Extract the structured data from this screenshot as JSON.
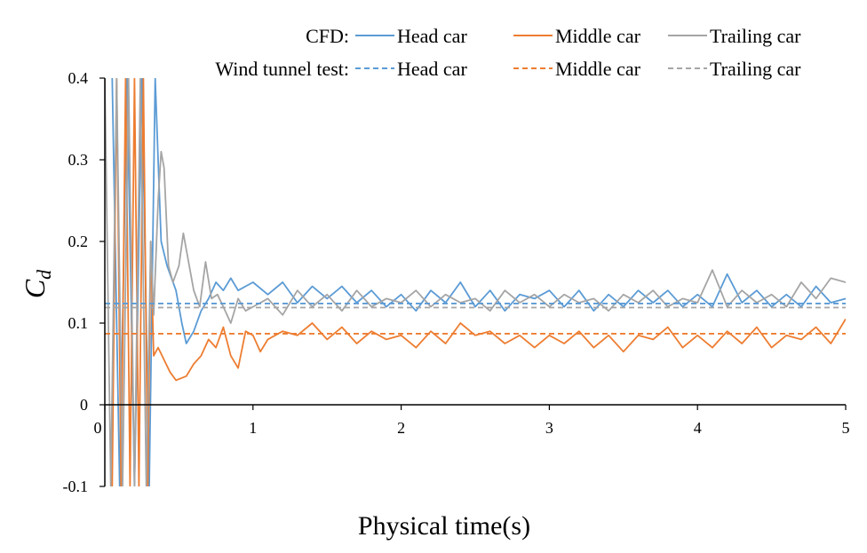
{
  "chart_data": {
    "type": "line",
    "xlabel": "Physical time(s)",
    "ylabel_main": "C",
    "ylabel_sub": "d",
    "xlim": [
      0,
      5
    ],
    "ylim": [
      -0.1,
      0.4
    ],
    "x_ticks": [
      0,
      1,
      2,
      3,
      4,
      5
    ],
    "y_ticks": [
      -0.1,
      0,
      0.1,
      0.2,
      0.3,
      0.4
    ],
    "y_tick_labels": [
      "-0.1",
      "0",
      "0.1",
      "0.2",
      "0.3",
      "0.4"
    ],
    "x_tick_labels": [
      "0",
      "1",
      "2",
      "3",
      "4",
      "5"
    ],
    "grid": false,
    "legend_position": "top-right",
    "legend": {
      "row_labels": [
        "CFD:",
        "Wind tunnel test:"
      ]
    },
    "colors": {
      "head": "#5B9BD5",
      "middle": "#ED7D31",
      "trailing": "#A5A5A5"
    },
    "series": [
      {
        "name": "Head car",
        "group": "CFD",
        "style": "solid",
        "color_key": "head",
        "points": [
          [
            0.05,
            0.4
          ],
          [
            0.1,
            -0.1
          ],
          [
            0.15,
            0.4
          ],
          [
            0.2,
            -0.1
          ],
          [
            0.25,
            0.4
          ],
          [
            0.3,
            -0.1
          ],
          [
            0.34,
            0.4
          ],
          [
            0.36,
            0.3
          ],
          [
            0.38,
            0.2
          ],
          [
            0.42,
            0.17
          ],
          [
            0.48,
            0.14
          ],
          [
            0.52,
            0.1
          ],
          [
            0.55,
            0.075
          ],
          [
            0.6,
            0.09
          ],
          [
            0.65,
            0.115
          ],
          [
            0.7,
            0.13
          ],
          [
            0.75,
            0.15
          ],
          [
            0.8,
            0.14
          ],
          [
            0.85,
            0.155
          ],
          [
            0.9,
            0.14
          ],
          [
            1.0,
            0.15
          ],
          [
            1.1,
            0.135
          ],
          [
            1.2,
            0.15
          ],
          [
            1.3,
            0.125
          ],
          [
            1.4,
            0.145
          ],
          [
            1.5,
            0.13
          ],
          [
            1.6,
            0.145
          ],
          [
            1.7,
            0.125
          ],
          [
            1.8,
            0.14
          ],
          [
            1.9,
            0.12
          ],
          [
            2.0,
            0.135
          ],
          [
            2.1,
            0.115
          ],
          [
            2.2,
            0.14
          ],
          [
            2.3,
            0.125
          ],
          [
            2.4,
            0.15
          ],
          [
            2.5,
            0.12
          ],
          [
            2.6,
            0.14
          ],
          [
            2.7,
            0.115
          ],
          [
            2.8,
            0.135
          ],
          [
            2.9,
            0.13
          ],
          [
            3.0,
            0.14
          ],
          [
            3.1,
            0.12
          ],
          [
            3.2,
            0.14
          ],
          [
            3.3,
            0.115
          ],
          [
            3.4,
            0.135
          ],
          [
            3.5,
            0.12
          ],
          [
            3.6,
            0.14
          ],
          [
            3.7,
            0.125
          ],
          [
            3.8,
            0.14
          ],
          [
            3.9,
            0.12
          ],
          [
            4.0,
            0.135
          ],
          [
            4.1,
            0.12
          ],
          [
            4.2,
            0.16
          ],
          [
            4.3,
            0.125
          ],
          [
            4.4,
            0.14
          ],
          [
            4.5,
            0.12
          ],
          [
            4.6,
            0.135
          ],
          [
            4.7,
            0.12
          ],
          [
            4.8,
            0.145
          ],
          [
            4.9,
            0.125
          ],
          [
            5.0,
            0.13
          ]
        ]
      },
      {
        "name": "Middle car",
        "group": "CFD",
        "style": "solid",
        "color_key": "middle",
        "points": [
          [
            0.05,
            -0.1
          ],
          [
            0.08,
            0.4
          ],
          [
            0.11,
            -0.1
          ],
          [
            0.14,
            0.4
          ],
          [
            0.17,
            -0.1
          ],
          [
            0.2,
            0.4
          ],
          [
            0.23,
            -0.1
          ],
          [
            0.26,
            0.4
          ],
          [
            0.29,
            -0.1
          ],
          [
            0.31,
            0.2
          ],
          [
            0.33,
            0.06
          ],
          [
            0.36,
            0.07
          ],
          [
            0.4,
            0.055
          ],
          [
            0.44,
            0.04
          ],
          [
            0.48,
            0.03
          ],
          [
            0.55,
            0.035
          ],
          [
            0.6,
            0.05
          ],
          [
            0.65,
            0.06
          ],
          [
            0.7,
            0.08
          ],
          [
            0.75,
            0.07
          ],
          [
            0.8,
            0.095
          ],
          [
            0.85,
            0.06
          ],
          [
            0.9,
            0.045
          ],
          [
            0.95,
            0.09
          ],
          [
            1.0,
            0.085
          ],
          [
            1.05,
            0.065
          ],
          [
            1.1,
            0.08
          ],
          [
            1.2,
            0.09
          ],
          [
            1.3,
            0.085
          ],
          [
            1.4,
            0.1
          ],
          [
            1.5,
            0.08
          ],
          [
            1.6,
            0.095
          ],
          [
            1.7,
            0.075
          ],
          [
            1.8,
            0.09
          ],
          [
            1.9,
            0.08
          ],
          [
            2.0,
            0.085
          ],
          [
            2.1,
            0.07
          ],
          [
            2.2,
            0.09
          ],
          [
            2.3,
            0.075
          ],
          [
            2.4,
            0.1
          ],
          [
            2.5,
            0.085
          ],
          [
            2.6,
            0.09
          ],
          [
            2.7,
            0.075
          ],
          [
            2.8,
            0.085
          ],
          [
            2.9,
            0.07
          ],
          [
            3.0,
            0.085
          ],
          [
            3.1,
            0.075
          ],
          [
            3.2,
            0.09
          ],
          [
            3.3,
            0.07
          ],
          [
            3.4,
            0.085
          ],
          [
            3.5,
            0.065
          ],
          [
            3.6,
            0.085
          ],
          [
            3.7,
            0.08
          ],
          [
            3.8,
            0.095
          ],
          [
            3.9,
            0.07
          ],
          [
            4.0,
            0.085
          ],
          [
            4.1,
            0.07
          ],
          [
            4.2,
            0.09
          ],
          [
            4.3,
            0.075
          ],
          [
            4.4,
            0.095
          ],
          [
            4.5,
            0.07
          ],
          [
            4.6,
            0.085
          ],
          [
            4.7,
            0.08
          ],
          [
            4.8,
            0.095
          ],
          [
            4.9,
            0.075
          ],
          [
            5.0,
            0.105
          ]
        ]
      },
      {
        "name": "Trailing car",
        "group": "CFD",
        "style": "solid",
        "color_key": "trailing",
        "points": [
          [
            0.0,
            0.4
          ],
          [
            0.04,
            -0.1
          ],
          [
            0.08,
            0.4
          ],
          [
            0.12,
            -0.1
          ],
          [
            0.16,
            0.4
          ],
          [
            0.2,
            -0.1
          ],
          [
            0.24,
            0.4
          ],
          [
            0.28,
            -0.1
          ],
          [
            0.31,
            0.2
          ],
          [
            0.33,
            0.11
          ],
          [
            0.36,
            0.25
          ],
          [
            0.38,
            0.31
          ],
          [
            0.4,
            0.29
          ],
          [
            0.43,
            0.17
          ],
          [
            0.46,
            0.15
          ],
          [
            0.5,
            0.17
          ],
          [
            0.53,
            0.21
          ],
          [
            0.56,
            0.18
          ],
          [
            0.6,
            0.14
          ],
          [
            0.64,
            0.12
          ],
          [
            0.68,
            0.175
          ],
          [
            0.72,
            0.13
          ],
          [
            0.76,
            0.135
          ],
          [
            0.8,
            0.12
          ],
          [
            0.85,
            0.1
          ],
          [
            0.9,
            0.13
          ],
          [
            0.95,
            0.115
          ],
          [
            1.0,
            0.12
          ],
          [
            1.1,
            0.13
          ],
          [
            1.2,
            0.11
          ],
          [
            1.3,
            0.14
          ],
          [
            1.4,
            0.12
          ],
          [
            1.5,
            0.135
          ],
          [
            1.6,
            0.115
          ],
          [
            1.7,
            0.14
          ],
          [
            1.8,
            0.12
          ],
          [
            1.9,
            0.13
          ],
          [
            2.0,
            0.125
          ],
          [
            2.1,
            0.14
          ],
          [
            2.2,
            0.12
          ],
          [
            2.3,
            0.135
          ],
          [
            2.4,
            0.125
          ],
          [
            2.5,
            0.13
          ],
          [
            2.6,
            0.115
          ],
          [
            2.7,
            0.14
          ],
          [
            2.8,
            0.125
          ],
          [
            2.9,
            0.135
          ],
          [
            3.0,
            0.12
          ],
          [
            3.1,
            0.135
          ],
          [
            3.2,
            0.125
          ],
          [
            3.3,
            0.13
          ],
          [
            3.4,
            0.115
          ],
          [
            3.5,
            0.135
          ],
          [
            3.6,
            0.125
          ],
          [
            3.7,
            0.14
          ],
          [
            3.8,
            0.12
          ],
          [
            3.9,
            0.13
          ],
          [
            4.0,
            0.125
          ],
          [
            4.1,
            0.165
          ],
          [
            4.2,
            0.12
          ],
          [
            4.3,
            0.14
          ],
          [
            4.4,
            0.125
          ],
          [
            4.5,
            0.135
          ],
          [
            4.6,
            0.12
          ],
          [
            4.7,
            0.15
          ],
          [
            4.8,
            0.13
          ],
          [
            4.9,
            0.155
          ],
          [
            5.0,
            0.15
          ]
        ]
      },
      {
        "name": "Head car",
        "group": "Wind tunnel test",
        "style": "dashed",
        "color_key": "head",
        "constant": 0.124
      },
      {
        "name": "Middle car",
        "group": "Wind tunnel test",
        "style": "dashed",
        "color_key": "middle",
        "constant": 0.087
      },
      {
        "name": "Trailing car",
        "group": "Wind tunnel test",
        "style": "dashed",
        "color_key": "trailing",
        "constant": 0.119
      }
    ]
  }
}
